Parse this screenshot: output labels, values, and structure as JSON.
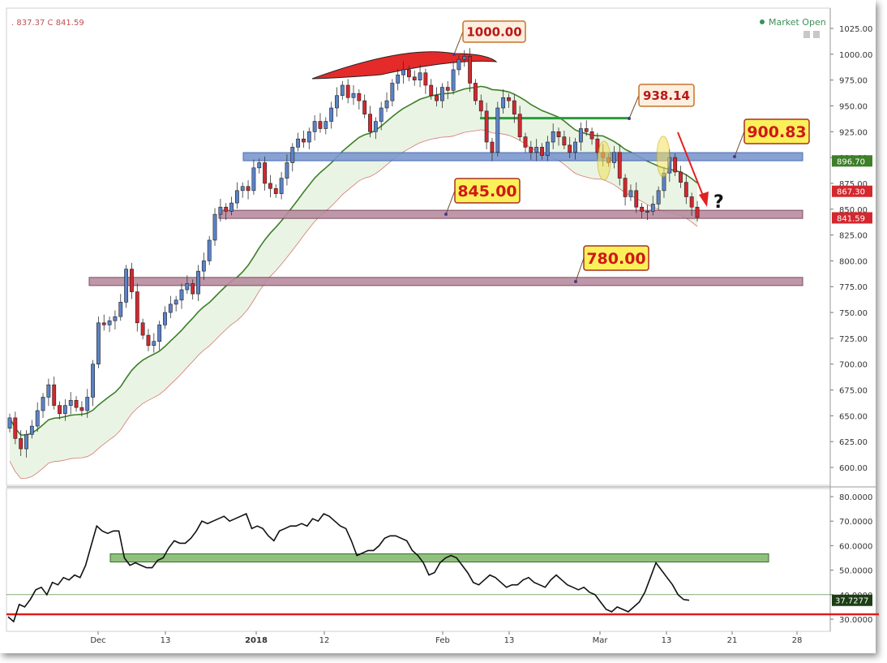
{
  "header": {
    "ohlc_text": "837.37 C 841.59",
    "status": "Market Open"
  },
  "colors": {
    "up": "#5b82c7",
    "down": "#d2282e",
    "ma_fast": "#c9413c",
    "ma_slow": "#3e7f2a",
    "band_fill": "#e6f2df",
    "oscillator": "#111111"
  },
  "chart_data": [
    {
      "type": "candlestick",
      "y_ticks": [
        "1025.00",
        "1000.00",
        "975.00",
        "950.00",
        "925.00",
        "900.00",
        "875.00",
        "850.00",
        "825.00",
        "800.00",
        "775.00",
        "750.00",
        "725.00",
        "700.00",
        "675.00",
        "650.00",
        "625.00",
        "600.00"
      ],
      "x_ticks": [
        "Dec",
        "13",
        "2018",
        "12",
        "Feb",
        "13",
        "Mar",
        "13",
        "21",
        "28"
      ],
      "x_ticks_bold": [
        "2018"
      ],
      "price_labels": [
        {
          "value": 896.7,
          "text": "896.70",
          "color": "#3e7f2a"
        },
        {
          "value": 867.3,
          "text": "867.30",
          "color": "#d2282e"
        },
        {
          "value": 841.59,
          "text": "841.59",
          "color": "#d2282e"
        }
      ],
      "levels": [
        {
          "value": 900.83,
          "label": "900.83",
          "band": "blue"
        },
        {
          "value": 845.0,
          "label": "845.00",
          "band": "purple"
        },
        {
          "value": 780.0,
          "label": "780.00",
          "band": "purple"
        },
        {
          "value": 938.14,
          "label": "938.14",
          "band": "green-line"
        },
        {
          "value": 1000.0,
          "label": "1000.00",
          "band": "peak"
        }
      ],
      "annotation_question": "?",
      "closes": [
        648,
        628,
        618,
        632,
        640,
        655,
        668,
        680,
        660,
        652,
        660,
        665,
        658,
        655,
        668,
        700,
        740,
        738,
        742,
        746,
        760,
        792,
        770,
        740,
        728,
        718,
        722,
        738,
        750,
        758,
        762,
        772,
        778,
        768,
        790,
        800,
        820,
        845,
        852,
        848,
        856,
        868,
        872,
        868,
        890,
        895,
        875,
        870,
        865,
        880,
        895,
        910,
        918,
        915,
        925,
        935,
        928,
        935,
        948,
        960,
        970,
        958,
        962,
        955,
        942,
        925,
        935,
        948,
        955,
        972,
        980,
        985,
        978,
        975,
        982,
        970,
        960,
        955,
        968,
        965,
        985,
        995,
        998,
        972,
        955,
        945,
        915,
        905,
        948,
        958,
        955,
        942,
        920,
        910,
        905,
        910,
        902,
        915,
        925,
        920,
        912,
        905,
        915,
        928,
        925,
        918,
        905,
        900,
        895,
        905,
        880,
        862,
        868,
        852,
        848,
        848,
        855,
        868,
        885,
        900,
        886,
        876,
        862,
        852,
        842
      ]
    },
    {
      "type": "line",
      "name": "",
      "y_ticks": [
        "80.0000",
        "70.0000",
        "60.0000",
        "50.0000",
        "40.0000",
        "30.0000"
      ],
      "current_label": "37.7277",
      "values": [
        31,
        29,
        36,
        35,
        38,
        42,
        43,
        40,
        45,
        44,
        47,
        46,
        48,
        47,
        52,
        60,
        68,
        66,
        65,
        66,
        66,
        55,
        52,
        53,
        52,
        51,
        51,
        54,
        55,
        59,
        62,
        61,
        61,
        63,
        66,
        70,
        69,
        70,
        71,
        72,
        70,
        71,
        72,
        73,
        67,
        68,
        67,
        64,
        62,
        66,
        67,
        68,
        68,
        69,
        68,
        71,
        70,
        73,
        72,
        70,
        68,
        67,
        62,
        56,
        57,
        58,
        58,
        60,
        63,
        64,
        64,
        63,
        62,
        58,
        56,
        53,
        48,
        49,
        53,
        55,
        56,
        55,
        52,
        49,
        45,
        44,
        46,
        48,
        47,
        45,
        43,
        44,
        44,
        46,
        47,
        45,
        44,
        43,
        46,
        48,
        46,
        44,
        43,
        42,
        43,
        41,
        40,
        37,
        34,
        33,
        35,
        34,
        33,
        35,
        37,
        41,
        47,
        53,
        50,
        47,
        44,
        40,
        38,
        37.7
      ]
    }
  ]
}
